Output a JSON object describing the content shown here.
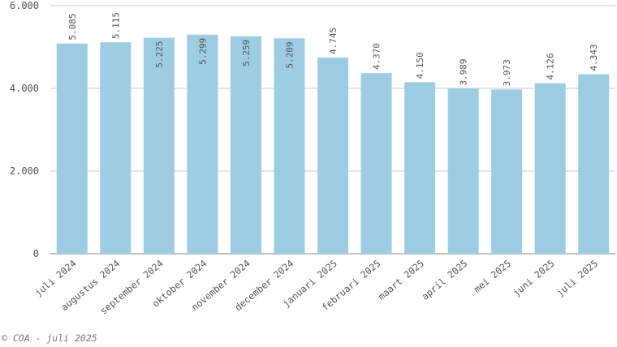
{
  "chart_data": {
    "type": "bar",
    "categories": [
      "juli 2024",
      "augustus 2024",
      "september 2024",
      "oktober 2024",
      "november 2024",
      "december 2024",
      "januari 2025",
      "februari 2025",
      "maart 2025",
      "april 2025",
      "mei 2025",
      "juni 2025",
      "juli 2025"
    ],
    "values": [
      5085,
      5115,
      5225,
      5299,
      5259,
      5209,
      4745,
      4370,
      4150,
      3989,
      3973,
      4126,
      4343
    ],
    "value_labels": [
      "5.085",
      "5.115",
      "5.225",
      "5.299",
      "5.259",
      "5.209",
      "4.745",
      "4.370",
      "4.150",
      "3.989",
      "3.973",
      "4.126",
      "4.343"
    ],
    "label_position": [
      "above",
      "above",
      "inside",
      "inside",
      "inside",
      "inside",
      "above",
      "above",
      "above",
      "above",
      "above",
      "above",
      "above"
    ],
    "ylim": [
      0,
      6000
    ],
    "yticks": [
      0,
      2000,
      4000,
      6000
    ],
    "ytick_labels": [
      "0",
      "2.000",
      "4.000",
      "6.000"
    ],
    "bar_color": "#9ecde3",
    "grid": true,
    "title": "",
    "xlabel": "",
    "ylabel": ""
  },
  "footer": {
    "credit": "© COA - juli 2025"
  }
}
